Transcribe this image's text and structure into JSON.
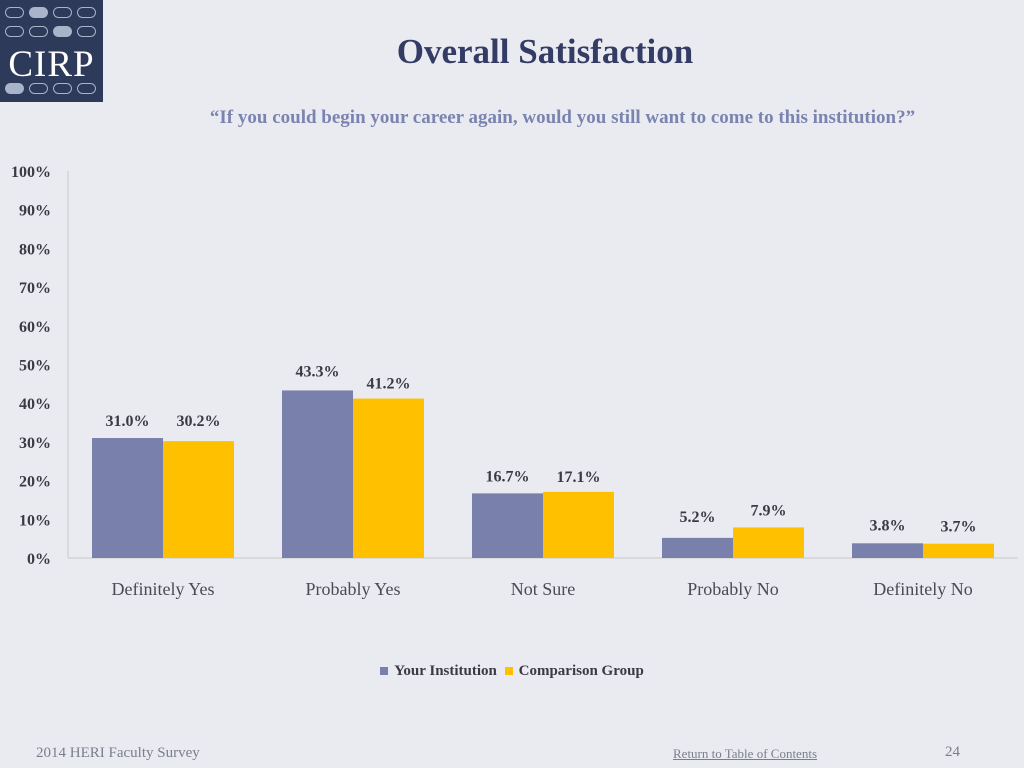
{
  "logo": {
    "text": "CIRP"
  },
  "title": "Overall Satisfaction",
  "subtitle": "“If you could begin your career again, would you still want to come to this institution?”",
  "colors": {
    "series1": "#7a80ac",
    "series2": "#ffc000",
    "axis": "#c8c8c8"
  },
  "chart_data": {
    "type": "bar",
    "title": "Overall Satisfaction",
    "categories": [
      "Definitely Yes",
      "Probably Yes",
      "Not Sure",
      "Probably No",
      "Definitely No"
    ],
    "series": [
      {
        "name": "Your Institution",
        "values": [
          31.0,
          43.3,
          16.7,
          5.2,
          3.8
        ],
        "labels": [
          "31.0%",
          "43.3%",
          "16.7%",
          "5.2%",
          "3.8%"
        ]
      },
      {
        "name": "Comparison Group",
        "values": [
          30.2,
          41.2,
          17.1,
          7.9,
          3.7
        ],
        "labels": [
          "30.2%",
          "41.2%",
          "17.1%",
          "7.9%",
          "3.7%"
        ]
      }
    ],
    "yticks": [
      "0%",
      "10%",
      "20%",
      "30%",
      "40%",
      "50%",
      "60%",
      "70%",
      "80%",
      "90%",
      "100%"
    ],
    "ylim": [
      0,
      100
    ],
    "xlabel": "",
    "ylabel": "",
    "legend": "bottom"
  },
  "legend": {
    "series1": "Your Institution",
    "series2": "Comparison Group"
  },
  "footer": {
    "left": "2014 HERI Faculty Survey",
    "link": "Return to Table of Contents",
    "page": "24"
  }
}
